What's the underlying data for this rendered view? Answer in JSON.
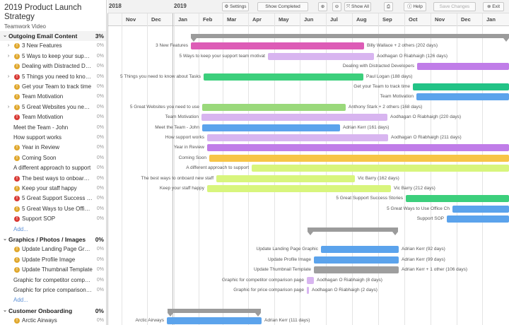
{
  "project": {
    "title": "2019 Product Launch Strategy",
    "subtitle": "Teamwork Video"
  },
  "toolbar": {
    "year_prev": "2018",
    "year_cur": "2019",
    "settings": "⚙ Settings",
    "show_completed": "Show Completed",
    "zoom_in": "⊕",
    "zoom_out": "⊖",
    "show_all": "⤧ Show All",
    "print": "⎙",
    "help": "ⓘ Help",
    "save": "Save Changes",
    "exit": "⊗ Exit"
  },
  "months": [
    "Nov",
    "Dec",
    "Jan",
    "Feb",
    "Mar",
    "Apr",
    "May",
    "Jun",
    "Jul",
    "Aug",
    "Sep",
    "Oct",
    "Nov",
    "Dec",
    "Jan"
  ],
  "colors": {
    "pink": "#dd5cb6",
    "lavender": "#d8b5f0",
    "violet": "#c07de8",
    "blue": "#5ba3ec",
    "green": "#3ccf7c",
    "teal": "#22c386",
    "lightgreen": "#9ad97b",
    "lime": "#d8f57d",
    "orange": "#f7c547",
    "gray": "#9e9e9e",
    "summary": "#9b9b9b"
  },
  "groups": [
    {
      "name": "Outgoing Email Content",
      "pct": "3%"
    },
    {
      "name": "Graphics / Photos / Images",
      "pct": "0%"
    },
    {
      "name": "Customer Onboarding",
      "pct": "0%"
    }
  ],
  "tasks": [
    {
      "name": "3 New Features",
      "pct": "0%",
      "icon": "yellow",
      "expand": "›",
      "label": "3 New Features",
      "assignee": "Billy Wallace + 2 others (202 days)"
    },
    {
      "name": "5 Ways to keep your support team motivated",
      "pct": "0%",
      "icon": "yellow",
      "expand": "›",
      "label": "5 Ways to keep your support team motivat",
      "assignee": "Aodhagan O Riabhaigh (126 days)"
    },
    {
      "name": "Dealing with Distracted Developers",
      "pct": "0%",
      "icon": "yellow",
      "expand": "",
      "label": "",
      "assignee": "Dealing with Distracted Developers"
    },
    {
      "name": "5 Things you need to know about Tasks",
      "pct": "0%",
      "icon": "red",
      "expand": "›",
      "label": "5 Things you need to know about Tasks",
      "assignee": "Paul Logan (188 days)"
    },
    {
      "name": "Get your Team to track time",
      "pct": "0%",
      "icon": "yellow",
      "expand": "",
      "label": "",
      "assignee": "Get your Team to track time"
    },
    {
      "name": "Team Motivation",
      "pct": "0%",
      "icon": "yellow",
      "expand": "",
      "label": "",
      "assignee": "Team Motivation"
    },
    {
      "name": "5 Great Websites you need to use",
      "pct": "0%",
      "icon": "yellow",
      "expand": "›",
      "label": "5 Great Websites you need to use",
      "assignee": "Anthony Stark + 2 others (168 days)"
    },
    {
      "name": "Team Motivation",
      "pct": "0%",
      "icon": "red",
      "expand": "",
      "label": "Team Motivation",
      "assignee": "Aodhagan O Riabhaigh (220 days)"
    },
    {
      "name": "Meet the Team - John",
      "pct": "0%",
      "icon": "",
      "expand": "",
      "label": "Meet the Team - John",
      "assignee": "Adrian Kerr (161 days)"
    },
    {
      "name": "How support works",
      "pct": "0%",
      "icon": "",
      "expand": "",
      "label": "How support works",
      "assignee": "Aodhagan O Riabhaigh (211 days)"
    },
    {
      "name": "Year in Review",
      "pct": "0%",
      "icon": "yellow",
      "expand": "",
      "label": "Year in Review",
      "assignee": ""
    },
    {
      "name": "Coming Soon",
      "pct": "0%",
      "icon": "yellow",
      "expand": "",
      "label": "Coming Soon",
      "assignee": ""
    },
    {
      "name": "A different approach to support",
      "pct": "0%",
      "icon": "",
      "expand": "",
      "label": "A different approach to support",
      "assignee": ""
    },
    {
      "name": "The best ways to onboard new staff",
      "pct": "0%",
      "icon": "red",
      "expand": "",
      "label": "The best ways to onboard new staff",
      "assignee": "Vic Barry (162 days)"
    },
    {
      "name": "Keep your staff happy",
      "pct": "0%",
      "icon": "yellow",
      "expand": "",
      "label": "Keep your staff happy",
      "assignee": "Vic Barry (212 days)"
    },
    {
      "name": "5 Great Support Success Stories",
      "pct": "0%",
      "icon": "red",
      "expand": "",
      "label": "5 Great Support Success Stories",
      "assignee": ""
    },
    {
      "name": "5 Great Ways to Use Office Chat",
      "pct": "0%",
      "icon": "yellow",
      "expand": "",
      "label": "",
      "assignee": "5 Great Ways to Use Office Ch"
    },
    {
      "name": "Support SOP",
      "pct": "0%",
      "icon": "red",
      "expand": "",
      "label": "Support SOP",
      "assignee": ""
    },
    {
      "name": "Update Landing Page Graphic",
      "pct": "0%",
      "icon": "yellow",
      "expand": "",
      "label": "Update Landing Page Graphic",
      "assignee": "Adrian Kerr (92 days)"
    },
    {
      "name": "Update Profile Image",
      "pct": "0%",
      "icon": "yellow",
      "expand": "",
      "label": "Update Profile Image",
      "assignee": "Adrian Kerr (99 days)"
    },
    {
      "name": "Update Thumbnail Template",
      "pct": "0%",
      "icon": "yellow",
      "expand": "",
      "label": "Update Thumbnail Template",
      "assignee": "Adrian Kerr + 1 other (106 days)"
    },
    {
      "name": "Graphic for competitor comparison page",
      "pct": "0%",
      "icon": "",
      "expand": "",
      "label": "Graphic for competitor comparison page",
      "assignee": "Aodhagan O Riabhaigh (8 days)"
    },
    {
      "name": "Graphic for price comparison page",
      "pct": "0%",
      "icon": "",
      "expand": "",
      "label": "Graphic for price comparison page",
      "assignee": "Aodhagan O Riabhaigh (2 days)"
    },
    {
      "name": "Arctic Airways",
      "pct": "0%",
      "icon": "yellow",
      "expand": "",
      "label": "Arctic Airways",
      "assignee": "Adrian Kerr (111 days)"
    }
  ],
  "add_label": "Add..."
}
